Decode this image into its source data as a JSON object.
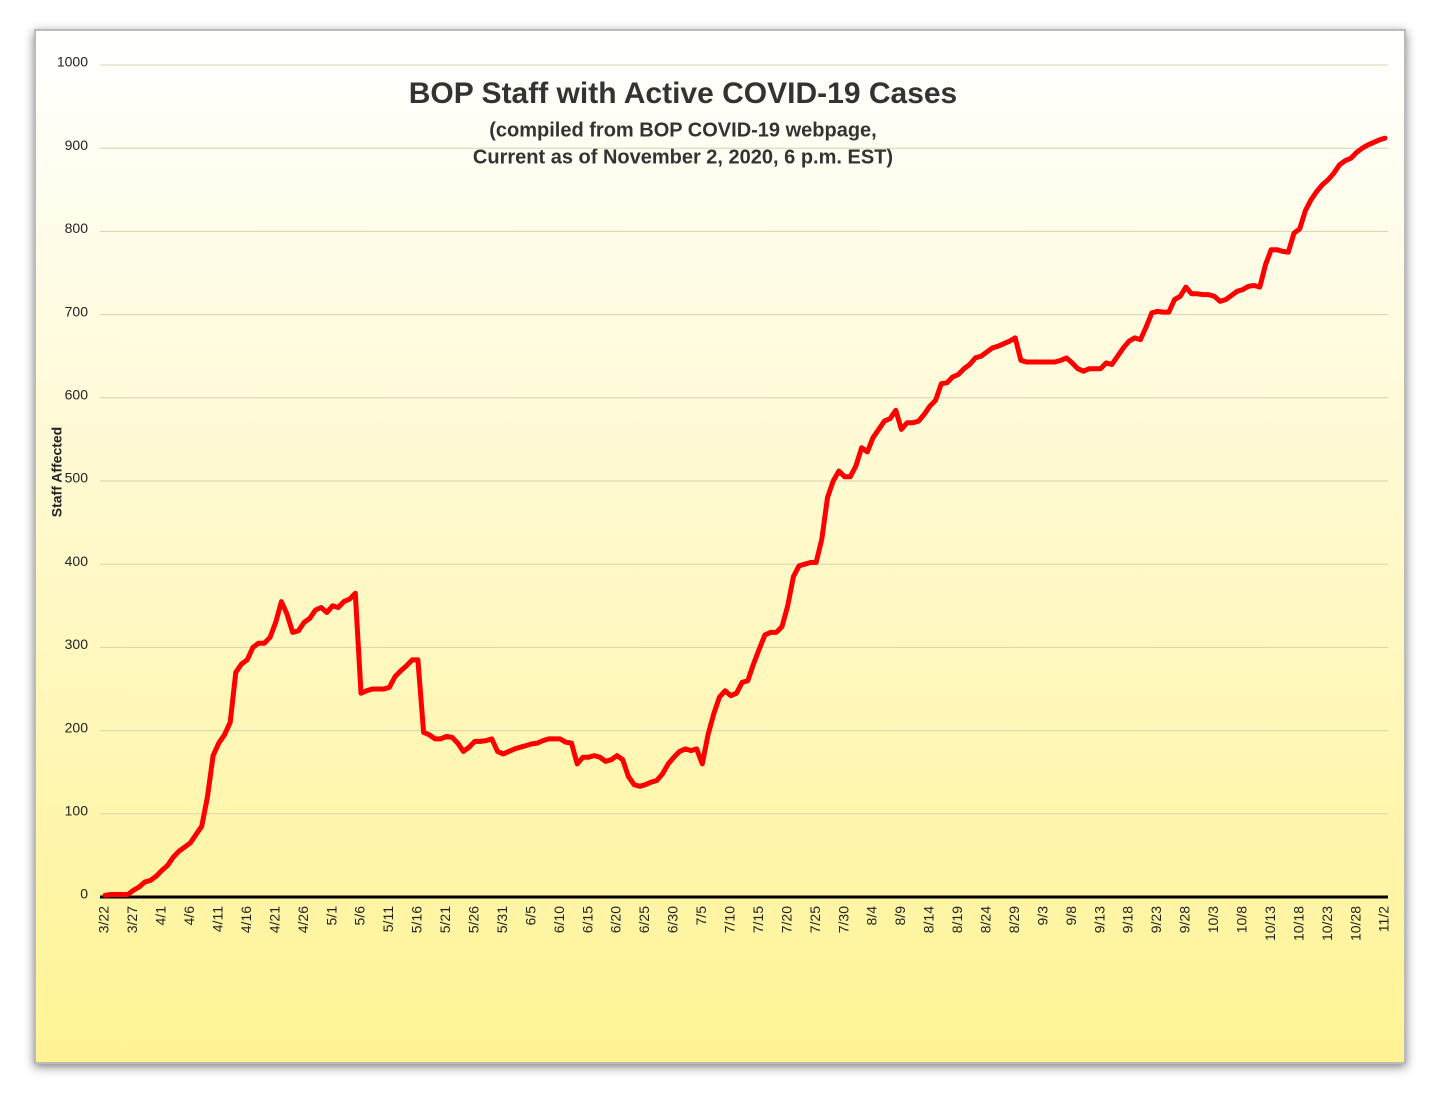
{
  "chart_data": {
    "type": "line",
    "title": "BOP Staff with Active COVID-19 Cases",
    "subtitle": [
      "(compiled from BOP COVID-19 webpage,",
      "Current as of November 2, 2020, 6 p.m. EST)"
    ],
    "y_label": "Staff Affected",
    "ylim": [
      0,
      1000
    ],
    "yticks": [
      0,
      100,
      200,
      300,
      400,
      500,
      600,
      700,
      800,
      900,
      1000
    ],
    "grid": true,
    "categories": [
      "3/22",
      null,
      null,
      null,
      null,
      "3/27",
      null,
      null,
      null,
      null,
      "4/1",
      null,
      null,
      null,
      null,
      "4/6",
      null,
      null,
      null,
      null,
      "4/11",
      null,
      null,
      null,
      null,
      "4/16",
      null,
      null,
      null,
      null,
      "4/21",
      null,
      null,
      null,
      null,
      "4/26",
      null,
      null,
      null,
      null,
      "5/1",
      null,
      null,
      null,
      null,
      "5/6",
      null,
      null,
      null,
      null,
      "5/11",
      null,
      null,
      null,
      null,
      "5/16",
      null,
      null,
      null,
      null,
      "5/21",
      null,
      null,
      null,
      null,
      "5/26",
      null,
      null,
      null,
      null,
      "5/31",
      null,
      null,
      null,
      null,
      "6/5",
      null,
      null,
      null,
      null,
      "6/10",
      null,
      null,
      null,
      null,
      "6/15",
      null,
      null,
      null,
      null,
      "6/20",
      null,
      null,
      null,
      null,
      "6/25",
      null,
      null,
      null,
      null,
      "6/30",
      null,
      null,
      null,
      null,
      "7/5",
      null,
      null,
      null,
      null,
      "7/10",
      null,
      null,
      null,
      null,
      "7/15",
      null,
      null,
      null,
      null,
      "7/20",
      null,
      null,
      null,
      null,
      "7/25",
      null,
      null,
      null,
      null,
      "7/30",
      null,
      null,
      null,
      null,
      "8/4",
      null,
      null,
      null,
      null,
      "8/9",
      null,
      null,
      null,
      null,
      "8/14",
      null,
      null,
      null,
      null,
      "8/19",
      null,
      null,
      null,
      null,
      "8/24",
      null,
      null,
      null,
      null,
      "8/29",
      null,
      null,
      null,
      null,
      "9/3",
      null,
      null,
      null,
      null,
      "9/8",
      null,
      null,
      null,
      null,
      "9/13",
      null,
      null,
      null,
      null,
      "9/18",
      null,
      null,
      null,
      null,
      "9/23",
      null,
      null,
      null,
      null,
      "9/28",
      null,
      null,
      null,
      null,
      "10/3",
      null,
      null,
      null,
      null,
      "10/8",
      null,
      null,
      null,
      null,
      "10/13",
      null,
      null,
      null,
      null,
      "10/18",
      null,
      null,
      null,
      null,
      "10/23",
      null,
      null,
      null,
      null,
      "10/28",
      null,
      null,
      null,
      null,
      "11/2"
    ],
    "series": [
      {
        "name": "Staff Affected",
        "color": "#ff0000",
        "values": [
          2,
          3,
          3,
          3,
          3,
          8,
          12,
          18,
          20,
          25,
          32,
          38,
          48,
          55,
          60,
          65,
          75,
          85,
          120,
          170,
          185,
          195,
          210,
          270,
          280,
          285,
          300,
          305,
          305,
          312,
          330,
          355,
          340,
          318,
          320,
          330,
          335,
          345,
          348,
          342,
          350,
          348,
          355,
          358,
          365,
          245,
          248,
          250,
          250,
          250,
          252,
          265,
          272,
          278,
          285,
          285,
          198,
          195,
          190,
          190,
          193,
          192,
          185,
          175,
          180,
          187,
          187,
          188,
          190,
          175,
          172,
          175,
          178,
          180,
          182,
          184,
          185,
          188,
          190,
          190,
          190,
          186,
          185,
          160,
          168,
          168,
          170,
          168,
          163,
          165,
          170,
          165,
          145,
          135,
          133,
          135,
          138,
          140,
          148,
          160,
          168,
          175,
          178,
          176,
          178,
          160,
          195,
          220,
          240,
          248,
          242,
          245,
          258,
          260,
          280,
          298,
          315,
          318,
          318,
          325,
          350,
          385,
          398,
          400,
          402,
          402,
          430,
          480,
          500,
          512,
          505,
          505,
          518,
          540,
          535,
          552,
          562,
          572,
          575,
          585,
          562,
          570,
          570,
          572,
          580,
          590,
          597,
          617,
          618,
          625,
          628,
          635,
          640,
          648,
          650,
          655,
          660,
          662,
          665,
          668,
          672,
          645,
          643,
          643,
          643,
          643,
          643,
          643,
          645,
          648,
          642,
          635,
          632,
          635,
          635,
          635,
          642,
          640,
          650,
          660,
          668,
          672,
          670,
          685,
          702,
          704,
          703,
          703,
          718,
          722,
          733,
          725,
          725,
          724,
          724,
          722,
          716,
          718,
          723,
          728,
          730,
          734,
          735,
          733,
          760,
          778,
          778,
          776,
          775,
          798,
          803,
          825,
          838,
          848,
          856,
          862,
          870,
          880,
          885,
          888,
          895,
          900,
          904,
          907,
          910,
          912
        ]
      }
    ]
  }
}
